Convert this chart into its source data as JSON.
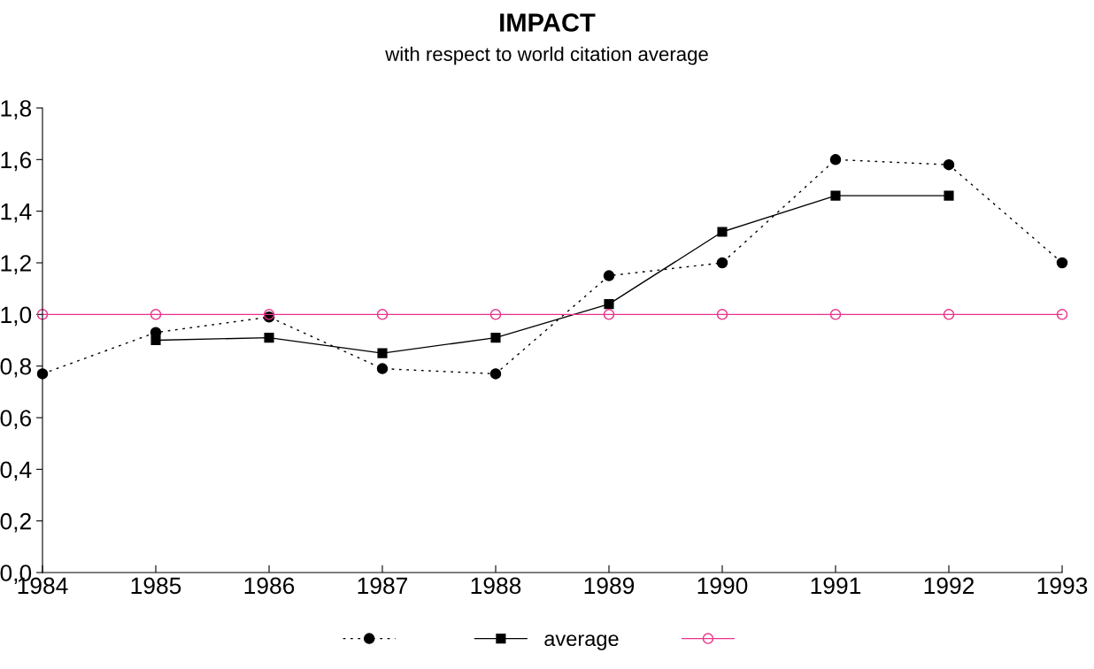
{
  "chart_data": {
    "type": "line",
    "title": "IMPACT",
    "subtitle": "with respect to world citation average",
    "x": [
      1984,
      1985,
      1986,
      1987,
      1988,
      1989,
      1990,
      1991,
      1992,
      1993
    ],
    "series": [
      {
        "color": "#000000",
        "marker": "circle",
        "line_style": "dotted",
        "values": [
          0.77,
          0.93,
          0.99,
          0.79,
          0.77,
          1.15,
          1.2,
          1.6,
          1.58,
          1.2
        ]
      },
      {
        "name": "average",
        "color": "#000000",
        "marker": "square",
        "line_style": "solid",
        "values": [
          null,
          0.9,
          0.91,
          0.85,
          0.91,
          1.04,
          1.32,
          1.46,
          1.46,
          null
        ]
      },
      {
        "color": "#e8338a",
        "marker": "circle",
        "line_style": "solid",
        "values": [
          1.0,
          1.0,
          1.0,
          1.0,
          1.0,
          1.0,
          1.0,
          1.0,
          1.0,
          1.0
        ]
      }
    ],
    "xlim": [
      1984,
      1993
    ],
    "xticks": [
      1984,
      1985,
      1986,
      1987,
      1988,
      1989,
      1990,
      1991,
      1992,
      1993
    ],
    "ylim": [
      0,
      1.8
    ],
    "yticks": [
      {
        "value": 0,
        "label": "0,0"
      },
      {
        "value": 0.2,
        "label": "0,2"
      },
      {
        "value": 0.4,
        "label": "0,4"
      },
      {
        "value": 0.6,
        "label": "0,6"
      },
      {
        "value": 0.8,
        "label": "0,8"
      },
      {
        "value": 1.0,
        "label": "1,0"
      },
      {
        "value": 1.2,
        "label": "1,2"
      },
      {
        "value": 1.4,
        "label": "1,4"
      },
      {
        "value": 1.6,
        "label": "1,6"
      },
      {
        "value": 1.8,
        "label": "1,8"
      }
    ],
    "grid": false,
    "legend": "bottom"
  }
}
